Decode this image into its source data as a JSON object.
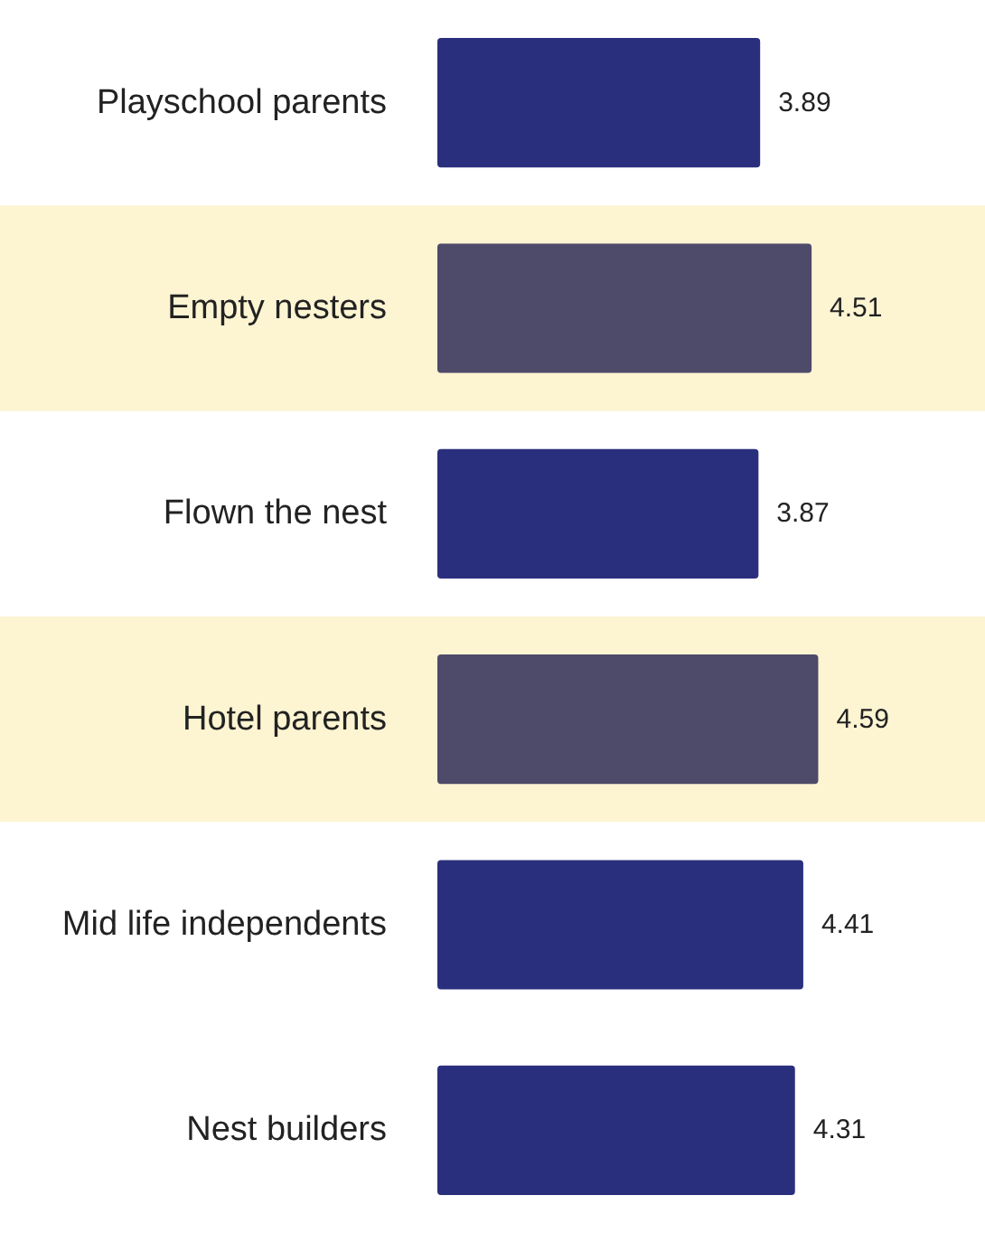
{
  "chart_data": {
    "type": "bar",
    "orientation": "horizontal",
    "categories": [
      "Playschool parents",
      "Empty nesters",
      "Flown the nest",
      "Hotel parents",
      "Mid life independents",
      "Nest builders"
    ],
    "values": [
      3.89,
      4.51,
      3.87,
      4.59,
      4.41,
      4.31
    ],
    "colors": [
      "#2a2f7d",
      "#4e4a69",
      "#2a2f7d",
      "#4e4a69",
      "#2a2f7d",
      "#2a2f7d"
    ],
    "xlim": [
      0,
      6.6
    ],
    "data_labels": true,
    "grid": false,
    "bands": [
      {
        "axis": "y",
        "from": "Empty nesters",
        "to": "Empty nesters",
        "color": "#fdf4d2"
      },
      {
        "axis": "y",
        "from": "Hotel parents",
        "to": "Hotel parents",
        "color": "#fdf4d2"
      }
    ]
  }
}
